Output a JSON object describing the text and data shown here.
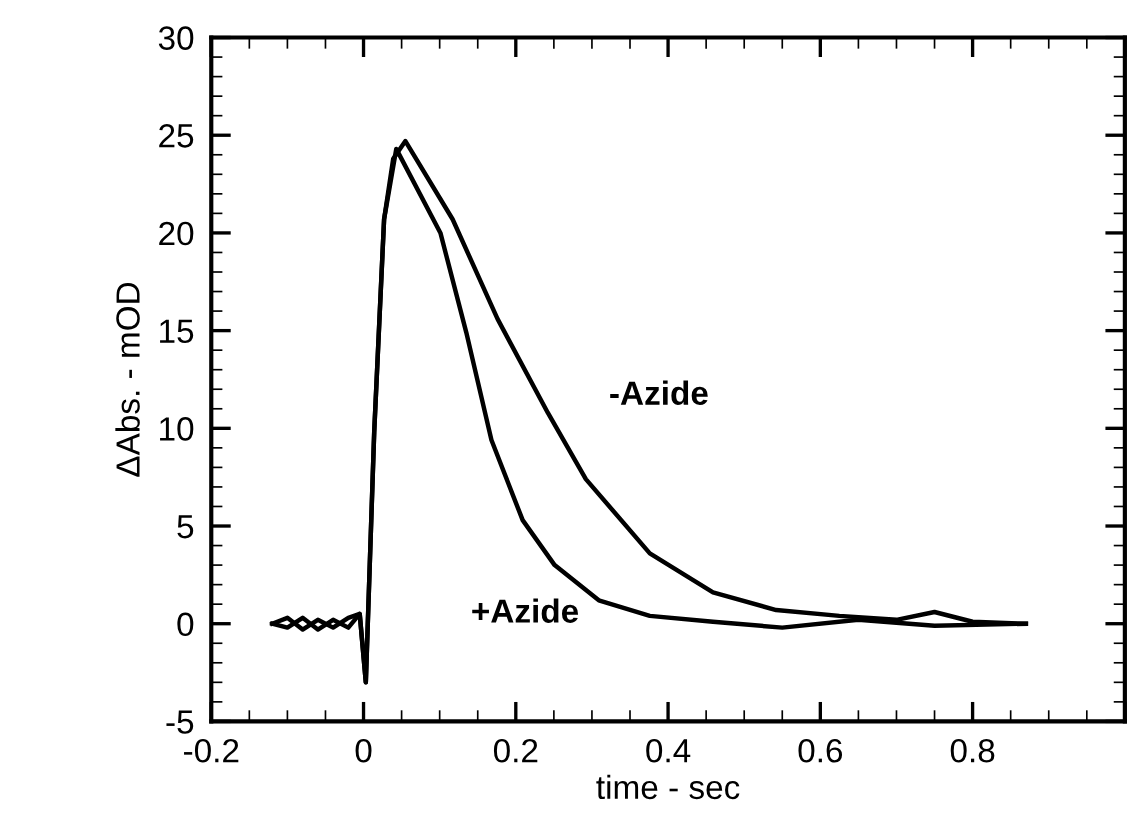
{
  "chart_data": {
    "type": "line",
    "xlabel": "time - sec",
    "ylabel": "ΔAbs. - mOD",
    "xlim": [
      -0.2,
      1.0
    ],
    "xticks": [
      -0.2,
      0,
      0.2,
      0.4,
      0.6,
      0.8,
      {
        "value": 1.0,
        "label": null
      }
    ],
    "ylim": [
      -5,
      30
    ],
    "yticks": [
      -5,
      0,
      5,
      10,
      15,
      20,
      25,
      30
    ],
    "grid": false,
    "legend": false,
    "marker": "none",
    "line_style": "solid",
    "series": [
      {
        "name": "-Azide",
        "color": "#000000",
        "x": [
          -0.12,
          -0.1,
          -0.08,
          -0.06,
          -0.04,
          -0.02,
          -0.005,
          0.003,
          0.014,
          0.027,
          0.039,
          0.055,
          0.117,
          0.176,
          0.242,
          0.292,
          0.376,
          0.459,
          0.542,
          0.625,
          0.7,
          0.75,
          0.8,
          0.87
        ],
        "values": [
          0,
          0.3,
          -0.3,
          0.2,
          -0.2,
          0.3,
          0.5,
          -3,
          9.8,
          20.7,
          23.8,
          24.7,
          20.7,
          15.6,
          10.8,
          7.4,
          3.6,
          1.6,
          0.7,
          0.4,
          0.2,
          0.6,
          0.1,
          0
        ]
      },
      {
        "name": "+Azide",
        "color": "#000000",
        "x": [
          -0.12,
          -0.1,
          -0.08,
          -0.06,
          -0.04,
          -0.02,
          -0.005,
          0.003,
          0.014,
          0.027,
          0.043,
          0.101,
          0.135,
          0.168,
          0.209,
          0.251,
          0.309,
          0.376,
          0.459,
          0.55,
          0.65,
          0.75,
          0.87
        ],
        "values": [
          0,
          -0.2,
          0.3,
          -0.3,
          0.2,
          -0.2,
          0.5,
          -3,
          9.8,
          20.7,
          24.3,
          20.0,
          14.9,
          9.4,
          5.3,
          3.0,
          1.2,
          0.4,
          0.1,
          -0.2,
          0.2,
          -0.1,
          0
        ]
      }
    ]
  }
}
